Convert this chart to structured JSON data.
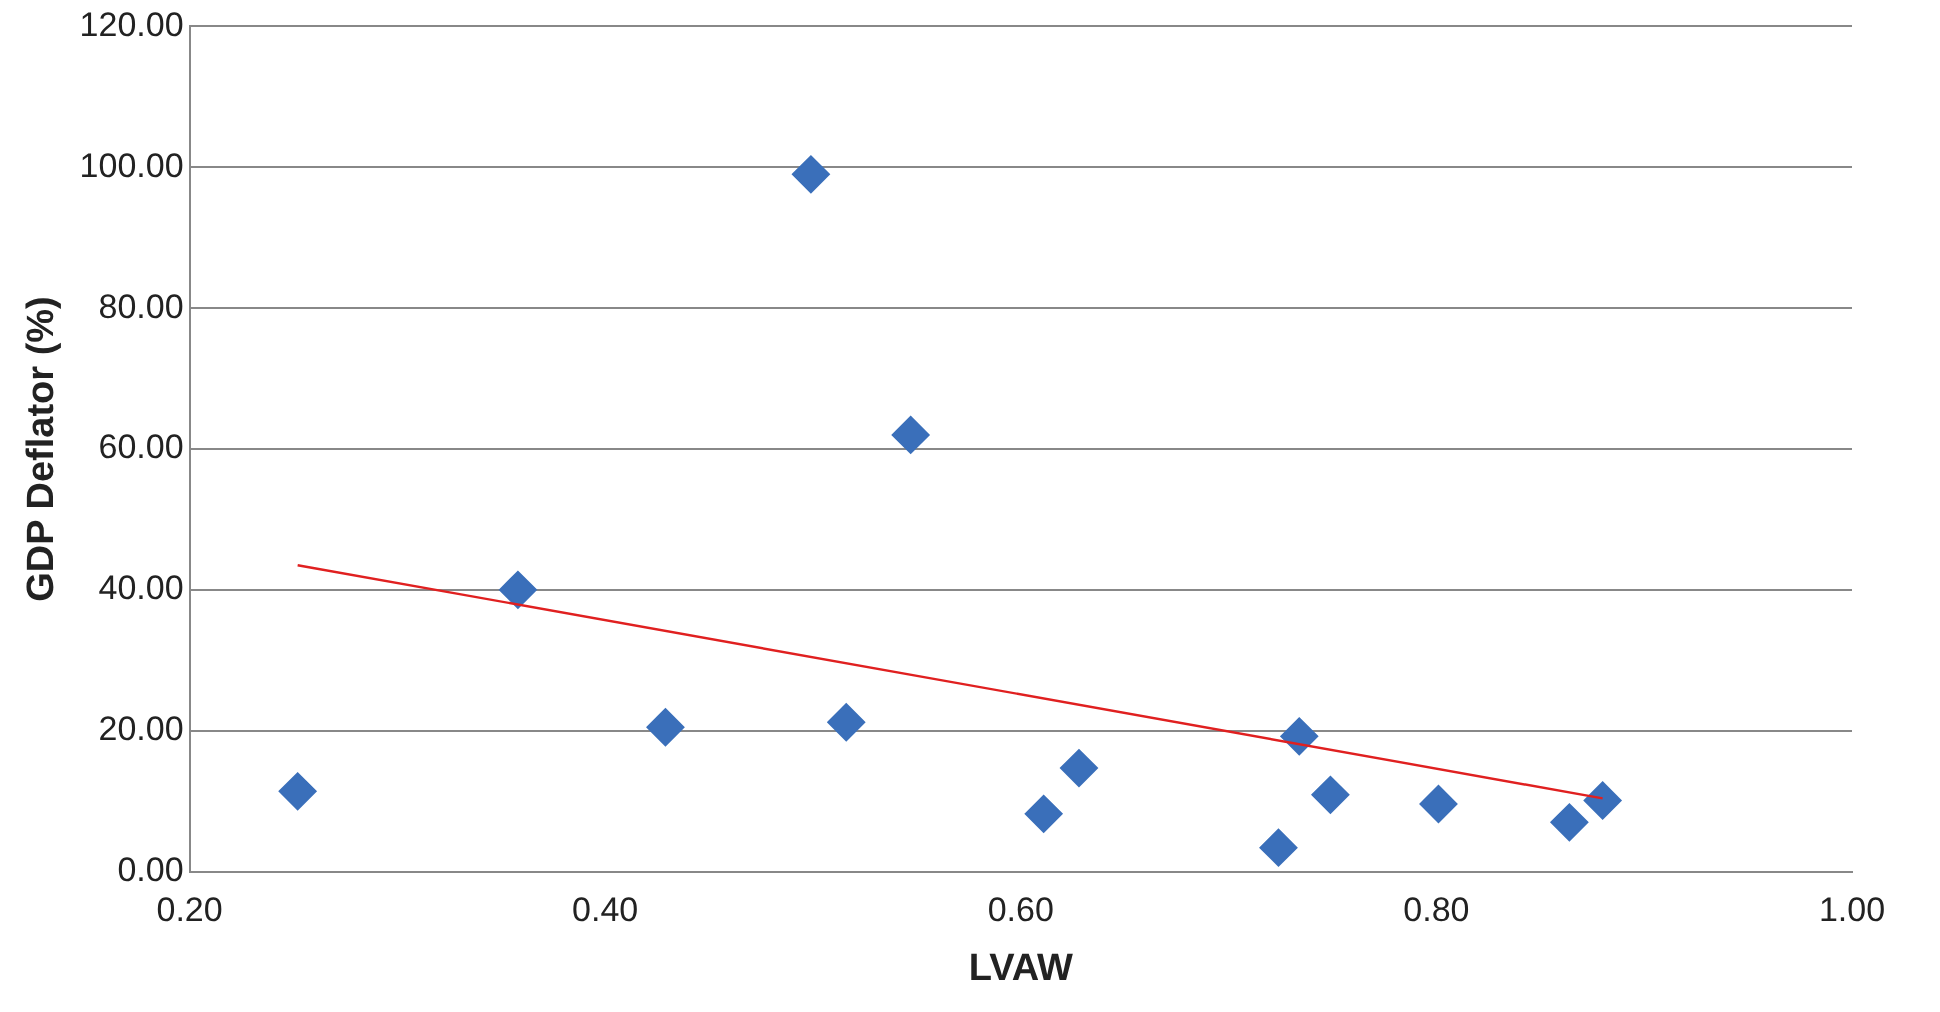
{
  "chart_data": {
    "type": "scatter",
    "xlabel": "LVAW",
    "ylabel": "GDP Deflator (%)",
    "xlim": [
      0.2,
      1.0
    ],
    "xticks": [
      {
        "value": 0.2,
        "label": "0.20"
      },
      {
        "value": 0.4,
        "label": "0.40"
      },
      {
        "value": 0.6,
        "label": "0.60"
      },
      {
        "value": 0.8,
        "label": "0.80"
      },
      {
        "value": 1.0,
        "label": "1.00"
      }
    ],
    "ylim": [
      0,
      120
    ],
    "yticks": [
      {
        "value": 0,
        "label": "0.00"
      },
      {
        "value": 20,
        "label": "20.00"
      },
      {
        "value": 40,
        "label": "40.00"
      },
      {
        "value": 60,
        "label": "60.00"
      },
      {
        "value": 80,
        "label": "80.00"
      },
      {
        "value": 100,
        "label": "100.00"
      },
      {
        "value": 120,
        "label": "120.00"
      }
    ],
    "grid": "y",
    "legend": false,
    "marker": "diamond",
    "series": [
      {
        "type": "scatter",
        "color": "#3a6fba",
        "x": [
          0.252,
          0.358,
          0.429,
          0.499,
          0.516,
          0.547,
          0.611,
          0.628,
          0.724,
          0.734,
          0.749,
          0.801,
          0.864,
          0.88
        ],
        "values": [
          11.4,
          40,
          20.5,
          99,
          21.2,
          62,
          8.2,
          14.7,
          3.4,
          19.2,
          10.9,
          9.6,
          7.0,
          10.1
        ]
      },
      {
        "type": "line",
        "color": "#e02020",
        "marker": "none",
        "x": [
          0.252,
          0.88
        ],
        "values": [
          43.5,
          10.4
        ]
      }
    ]
  }
}
